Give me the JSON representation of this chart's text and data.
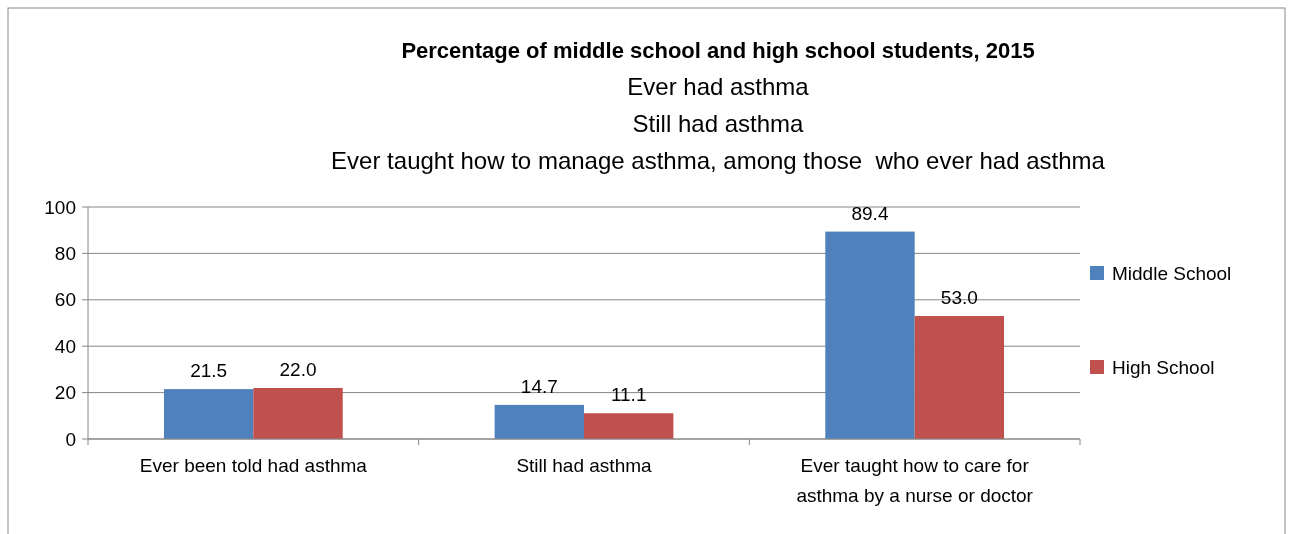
{
  "chart_data": {
    "type": "bar",
    "title": "Percentage of middle school and high school students, 2015",
    "subtitle": "Ever had asthma\nStill had asthma\nEver taught how to manage asthma, among those  who ever had asthma",
    "categories": [
      "Ever been told had asthma",
      "Still had asthma",
      "Ever taught how to care for asthma by a nurse or doctor"
    ],
    "series": [
      {
        "name": "Middle School",
        "color": "#4f81bd",
        "values": [
          21.5,
          14.7,
          89.4
        ]
      },
      {
        "name": "High School",
        "color": "#c0504d",
        "values": [
          22.0,
          11.1,
          53.0
        ]
      }
    ],
    "value_labels": [
      [
        "21.5",
        "14.7",
        "89.4"
      ],
      [
        "22.0",
        "11.1",
        "53.0"
      ]
    ],
    "ylim": [
      0,
      100
    ],
    "yticks": [
      0,
      20,
      40,
      60,
      80,
      100
    ],
    "grid": "y",
    "legend": "right"
  }
}
